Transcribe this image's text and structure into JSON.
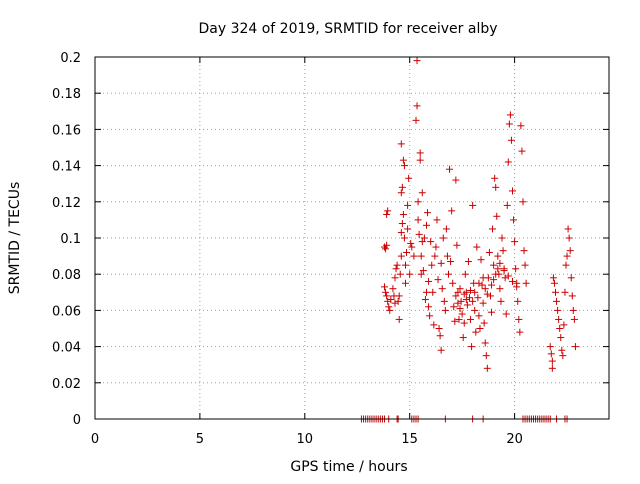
{
  "chart_data": {
    "type": "scatter",
    "title": "Day 324 of 2019, SRMTID for receiver alby",
    "xlabel": "GPS time / hours",
    "ylabel": "SRMTID / TECUs",
    "xlim": [
      0,
      24.5
    ],
    "ylim": [
      0,
      0.2
    ],
    "xticks": [
      0,
      5,
      10,
      15,
      20
    ],
    "xtick_labels": [
      "0",
      "5",
      "10",
      "15",
      "20"
    ],
    "yticks": [
      0,
      0.02,
      0.04,
      0.06,
      0.08,
      0.1,
      0.12,
      0.14,
      0.16,
      0.18,
      0.2
    ],
    "ytick_labels": [
      "0",
      "0.02",
      "0.04",
      "0.06",
      "0.08",
      "0.1",
      "0.12",
      "0.14",
      "0.16",
      "0.18",
      "0.2"
    ],
    "grid": true,
    "legend": false,
    "marker": "+",
    "color": "#cc0000",
    "series": [
      {
        "points": [
          [
            12.7,
            0
          ],
          [
            12.8,
            0
          ],
          [
            12.9,
            0
          ],
          [
            13.0,
            0
          ],
          [
            13.1,
            0
          ],
          [
            13.2,
            0
          ],
          [
            13.3,
            0
          ],
          [
            13.4,
            0
          ],
          [
            13.5,
            0
          ],
          [
            13.6,
            0
          ],
          [
            13.7,
            0
          ],
          [
            13.8,
            0
          ],
          [
            14.0,
            0
          ],
          [
            14.4,
            0
          ],
          [
            14.45,
            0
          ],
          [
            15.1,
            0
          ],
          [
            15.2,
            0
          ],
          [
            15.3,
            0
          ],
          [
            15.4,
            0
          ],
          [
            16.7,
            0
          ],
          [
            18.0,
            0
          ],
          [
            18.5,
            0
          ],
          [
            20.4,
            0
          ],
          [
            20.5,
            0
          ],
          [
            20.6,
            0
          ],
          [
            20.7,
            0
          ],
          [
            20.8,
            0
          ],
          [
            20.9,
            0
          ],
          [
            21.0,
            0
          ],
          [
            21.1,
            0
          ],
          [
            21.2,
            0
          ],
          [
            21.3,
            0
          ],
          [
            21.4,
            0
          ],
          [
            21.5,
            0
          ],
          [
            21.6,
            0
          ],
          [
            21.7,
            0
          ],
          [
            22.0,
            0
          ],
          [
            22.4,
            0
          ],
          [
            22.5,
            0
          ],
          [
            13.8,
            0.095
          ],
          [
            13.85,
            0.094
          ],
          [
            13.9,
            0.096
          ],
          [
            13.9,
            0.113
          ],
          [
            13.95,
            0.115
          ],
          [
            13.8,
            0.073
          ],
          [
            13.85,
            0.07
          ],
          [
            13.9,
            0.068
          ],
          [
            13.95,
            0.065
          ],
          [
            14.0,
            0.062
          ],
          [
            14.05,
            0.06
          ],
          [
            14.1,
            0.066
          ],
          [
            14.2,
            0.072
          ],
          [
            14.25,
            0.068
          ],
          [
            14.3,
            0.064
          ],
          [
            14.3,
            0.078
          ],
          [
            14.35,
            0.083
          ],
          [
            14.4,
            0.085
          ],
          [
            14.45,
            0.065
          ],
          [
            14.5,
            0.055
          ],
          [
            14.5,
            0.068
          ],
          [
            14.55,
            0.08
          ],
          [
            14.6,
            0.09
          ],
          [
            14.6,
            0.103
          ],
          [
            14.65,
            0.108
          ],
          [
            14.6,
            0.125
          ],
          [
            14.65,
            0.128
          ],
          [
            14.6,
            0.152
          ],
          [
            14.7,
            0.143
          ],
          [
            14.75,
            0.14
          ],
          [
            14.7,
            0.113
          ],
          [
            14.75,
            0.1
          ],
          [
            14.8,
            0.085
          ],
          [
            14.8,
            0.075
          ],
          [
            14.85,
            0.092
          ],
          [
            14.9,
            0.105
          ],
          [
            14.9,
            0.118
          ],
          [
            14.95,
            0.133
          ],
          [
            15.0,
            0.08
          ],
          [
            15.05,
            0.097
          ],
          [
            15.1,
            0.095
          ],
          [
            15.2,
            0.09
          ],
          [
            15.3,
            0.165
          ],
          [
            15.35,
            0.173
          ],
          [
            15.35,
            0.198
          ],
          [
            15.4,
            0.12
          ],
          [
            15.4,
            0.11
          ],
          [
            15.45,
            0.102
          ],
          [
            15.5,
            0.147
          ],
          [
            15.5,
            0.143
          ],
          [
            15.55,
            0.08
          ],
          [
            15.55,
            0.09
          ],
          [
            15.6,
            0.125
          ],
          [
            15.6,
            0.098
          ],
          [
            15.65,
            0.082
          ],
          [
            15.7,
            0.1
          ],
          [
            15.75,
            0.066
          ],
          [
            15.8,
            0.07
          ],
          [
            15.8,
            0.107
          ],
          [
            15.85,
            0.114
          ],
          [
            15.9,
            0.076
          ],
          [
            15.9,
            0.062
          ],
          [
            15.95,
            0.057
          ],
          [
            16.0,
            0.098
          ],
          [
            16.05,
            0.085
          ],
          [
            16.1,
            0.07
          ],
          [
            16.15,
            0.052
          ],
          [
            16.2,
            0.09
          ],
          [
            16.25,
            0.095
          ],
          [
            16.3,
            0.11
          ],
          [
            16.35,
            0.077
          ],
          [
            16.4,
            0.05
          ],
          [
            16.45,
            0.046
          ],
          [
            16.5,
            0.038
          ],
          [
            16.5,
            0.086
          ],
          [
            16.55,
            0.072
          ],
          [
            16.6,
            0.1
          ],
          [
            16.65,
            0.065
          ],
          [
            16.7,
            0.06
          ],
          [
            16.75,
            0.105
          ],
          [
            16.8,
            0.09
          ],
          [
            16.85,
            0.08
          ],
          [
            16.9,
            0.138
          ],
          [
            16.95,
            0.087
          ],
          [
            17.0,
            0.115
          ],
          [
            17.05,
            0.075
          ],
          [
            17.1,
            0.062
          ],
          [
            17.15,
            0.054
          ],
          [
            17.2,
            0.132
          ],
          [
            17.25,
            0.096
          ],
          [
            17.3,
            0.07
          ],
          [
            17.35,
            0.055
          ],
          [
            17.4,
            0.072
          ],
          [
            17.45,
            0.065
          ],
          [
            17.5,
            0.058
          ],
          [
            17.55,
            0.045
          ],
          [
            17.6,
            0.053
          ],
          [
            17.65,
            0.08
          ],
          [
            17.7,
            0.07
          ],
          [
            17.75,
            0.063
          ],
          [
            17.8,
            0.087
          ],
          [
            17.85,
            0.067
          ],
          [
            17.9,
            0.055
          ],
          [
            17.95,
            0.04
          ],
          [
            18.0,
            0.118
          ],
          [
            18.05,
            0.075
          ],
          [
            18.1,
            0.06
          ],
          [
            18.15,
            0.048
          ],
          [
            18.2,
            0.095
          ],
          [
            18.25,
            0.067
          ],
          [
            18.3,
            0.057
          ],
          [
            18.35,
            0.05
          ],
          [
            18.4,
            0.088
          ],
          [
            18.45,
            0.074
          ],
          [
            18.5,
            0.064
          ],
          [
            18.55,
            0.053
          ],
          [
            18.6,
            0.042
          ],
          [
            18.65,
            0.035
          ],
          [
            18.7,
            0.028
          ],
          [
            18.75,
            0.078
          ],
          [
            18.8,
            0.092
          ],
          [
            18.85,
            0.068
          ],
          [
            18.9,
            0.059
          ],
          [
            18.95,
            0.105
          ],
          [
            19.0,
            0.085
          ],
          [
            19.05,
            0.133
          ],
          [
            19.1,
            0.128
          ],
          [
            19.15,
            0.112
          ],
          [
            19.2,
            0.09
          ],
          [
            19.25,
            0.08
          ],
          [
            19.3,
            0.072
          ],
          [
            19.35,
            0.065
          ],
          [
            19.4,
            0.1
          ],
          [
            19.45,
            0.093
          ],
          [
            19.5,
            0.083
          ],
          [
            19.55,
            0.078
          ],
          [
            19.6,
            0.058
          ],
          [
            19.65,
            0.118
          ],
          [
            19.7,
            0.142
          ],
          [
            19.75,
            0.163
          ],
          [
            19.8,
            0.168
          ],
          [
            19.85,
            0.154
          ],
          [
            19.9,
            0.126
          ],
          [
            19.95,
            0.11
          ],
          [
            20.0,
            0.098
          ],
          [
            20.05,
            0.083
          ],
          [
            20.1,
            0.075
          ],
          [
            20.15,
            0.065
          ],
          [
            20.2,
            0.055
          ],
          [
            20.25,
            0.048
          ],
          [
            20.3,
            0.162
          ],
          [
            20.35,
            0.148
          ],
          [
            20.4,
            0.12
          ],
          [
            20.45,
            0.093
          ],
          [
            20.5,
            0.085
          ],
          [
            20.55,
            0.075
          ],
          [
            17.2,
            0.068
          ],
          [
            17.3,
            0.064
          ],
          [
            17.4,
            0.061
          ],
          [
            17.6,
            0.069
          ],
          [
            17.7,
            0.066
          ],
          [
            17.9,
            0.071
          ],
          [
            18.0,
            0.065
          ],
          [
            18.1,
            0.07
          ],
          [
            18.3,
            0.075
          ],
          [
            18.5,
            0.078
          ],
          [
            18.6,
            0.072
          ],
          [
            18.7,
            0.069
          ],
          [
            18.9,
            0.074
          ],
          [
            19.0,
            0.077
          ],
          [
            19.1,
            0.08
          ],
          [
            19.2,
            0.083
          ],
          [
            19.3,
            0.086
          ],
          [
            19.5,
            0.082
          ],
          [
            19.7,
            0.079
          ],
          [
            19.9,
            0.076
          ],
          [
            20.1,
            0.073
          ],
          [
            21.7,
            0.04
          ],
          [
            21.75,
            0.036
          ],
          [
            21.8,
            0.032
          ],
          [
            21.8,
            0.028
          ],
          [
            21.85,
            0.078
          ],
          [
            21.9,
            0.075
          ],
          [
            21.95,
            0.07
          ],
          [
            22.0,
            0.065
          ],
          [
            22.05,
            0.06
          ],
          [
            22.1,
            0.055
          ],
          [
            22.15,
            0.05
          ],
          [
            22.2,
            0.045
          ],
          [
            22.25,
            0.038
          ],
          [
            22.3,
            0.035
          ],
          [
            22.35,
            0.052
          ],
          [
            22.4,
            0.07
          ],
          [
            22.45,
            0.085
          ],
          [
            22.5,
            0.09
          ],
          [
            22.55,
            0.105
          ],
          [
            22.6,
            0.1
          ],
          [
            22.65,
            0.093
          ],
          [
            22.7,
            0.078
          ],
          [
            22.75,
            0.068
          ],
          [
            22.8,
            0.06
          ],
          [
            22.85,
            0.055
          ],
          [
            22.9,
            0.04
          ]
        ]
      }
    ]
  }
}
